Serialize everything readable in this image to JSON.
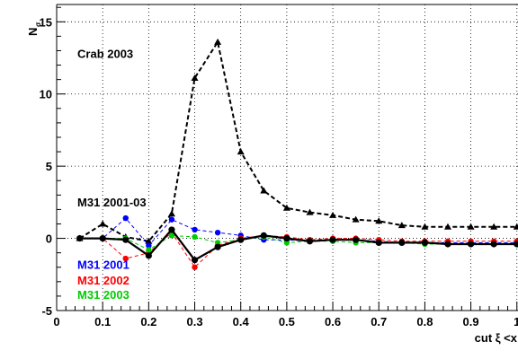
{
  "chart_data": {
    "type": "line",
    "title": "",
    "xlabel": "cut ξ <x",
    "ylabel": "N",
    "ylabel_subscript": "σ",
    "xlim": [
      0,
      1.02
    ],
    "ylim": [
      -5,
      16.2
    ],
    "x_ticks": [
      {
        "value": 0,
        "label": "0"
      },
      {
        "value": 0.1,
        "label": "0.1"
      },
      {
        "value": 0.2,
        "label": "0.2"
      },
      {
        "value": 0.3,
        "label": "0.3"
      },
      {
        "value": 0.4,
        "label": "0.4"
      },
      {
        "value": 0.5,
        "label": "0.5"
      },
      {
        "value": 0.6,
        "label": "0.6"
      },
      {
        "value": 0.7,
        "label": "0.7"
      },
      {
        "value": 0.8,
        "label": "0.8"
      },
      {
        "value": 0.9,
        "label": "0.9"
      },
      {
        "value": 1.0,
        "label": "1"
      }
    ],
    "y_ticks": [
      {
        "value": -5,
        "label": "-5"
      },
      {
        "value": 0,
        "label": "0"
      },
      {
        "value": 5,
        "label": "5"
      },
      {
        "value": 10,
        "label": "10"
      },
      {
        "value": 15,
        "label": "15"
      }
    ],
    "grid": true,
    "annotations": [
      {
        "text": "Crab 2003",
        "x": 0.045,
        "y": 12.5,
        "color": "#000000"
      },
      {
        "text": "M31 2001-03",
        "x": 0.045,
        "y": 2.2,
        "color": "#000000"
      },
      {
        "text": "M31 2001",
        "x": 0.045,
        "y": -2.1,
        "color": "#0000ff"
      },
      {
        "text": "M31 2002",
        "x": 0.045,
        "y": -3.2,
        "color": "#ff0000"
      },
      {
        "text": "M31 2003",
        "x": 0.045,
        "y": -4.2,
        "color": "#00cc00"
      }
    ],
    "series": [
      {
        "name": "Crab 2003",
        "color": "#000000",
        "marker": "triangle",
        "dash": true,
        "width": 2,
        "x": [
          0.05,
          0.1,
          0.15,
          0.2,
          0.25,
          0.3,
          0.35,
          0.4,
          0.45,
          0.5,
          0.55,
          0.6,
          0.65,
          0.7,
          0.75,
          0.8,
          0.85,
          0.9,
          0.95,
          1.0
        ],
        "y": [
          0.0,
          1.0,
          0.1,
          -0.2,
          1.7,
          11.1,
          13.6,
          6.0,
          3.3,
          2.1,
          1.8,
          1.6,
          1.3,
          1.2,
          0.9,
          0.8,
          0.8,
          0.8,
          0.8,
          0.8
        ]
      },
      {
        "name": "M31 2001",
        "color": "#0000ff",
        "marker": "circle",
        "dash": true,
        "width": 1,
        "x": [
          0.05,
          0.1,
          0.15,
          0.2,
          0.25,
          0.3,
          0.35,
          0.4,
          0.45,
          0.5,
          0.55,
          0.6,
          0.65,
          0.7,
          0.75,
          0.8,
          0.85,
          0.9,
          0.95,
          1.0
        ],
        "y": [
          0.0,
          0.0,
          1.4,
          -0.5,
          1.3,
          0.6,
          0.4,
          0.2,
          -0.1,
          -0.1,
          -0.2,
          -0.1,
          -0.1,
          -0.2,
          -0.3,
          -0.3,
          -0.3,
          -0.3,
          -0.3,
          -0.3
        ]
      },
      {
        "name": "M31 2002",
        "color": "#ff0000",
        "marker": "circle",
        "dash": true,
        "width": 1,
        "x": [
          0.05,
          0.1,
          0.15,
          0.2,
          0.25,
          0.3,
          0.35,
          0.4,
          0.45,
          0.5,
          0.55,
          0.6,
          0.65,
          0.7,
          0.75,
          0.8,
          0.85,
          0.9,
          0.95,
          1.0
        ],
        "y": [
          0.0,
          0.0,
          -1.4,
          -1.0,
          0.4,
          -2.0,
          -0.5,
          0.0,
          0.2,
          0.1,
          -0.1,
          0.0,
          0.0,
          -0.1,
          -0.2,
          -0.2,
          -0.2,
          -0.2,
          -0.2,
          -0.2
        ]
      },
      {
        "name": "M31 2003",
        "color": "#00cc00",
        "marker": "circle",
        "dash": true,
        "width": 1,
        "x": [
          0.05,
          0.1,
          0.15,
          0.2,
          0.25,
          0.3,
          0.35,
          0.4,
          0.45,
          0.5,
          0.55,
          0.6,
          0.65,
          0.7,
          0.75,
          0.8,
          0.85,
          0.9,
          0.95,
          1.0
        ],
        "y": [
          0.0,
          0.0,
          0.0,
          -0.8,
          0.2,
          0.1,
          -0.3,
          -0.1,
          0.1,
          -0.3,
          -0.2,
          -0.2,
          -0.3,
          -0.3,
          -0.3,
          -0.4,
          -0.4,
          -0.4,
          -0.4,
          -0.4
        ]
      },
      {
        "name": "M31 2001-03",
        "color": "#000000",
        "marker": "circle",
        "dash": false,
        "width": 2.2,
        "x": [
          0.05,
          0.1,
          0.15,
          0.2,
          0.25,
          0.3,
          0.35,
          0.4,
          0.45,
          0.5,
          0.55,
          0.6,
          0.65,
          0.7,
          0.75,
          0.8,
          0.85,
          0.9,
          0.95,
          1.0
        ],
        "y": [
          0.0,
          0.0,
          -0.1,
          -1.2,
          0.6,
          -1.5,
          -0.6,
          -0.1,
          0.2,
          0.0,
          -0.2,
          -0.1,
          -0.1,
          -0.3,
          -0.3,
          -0.3,
          -0.4,
          -0.4,
          -0.4,
          -0.4
        ]
      }
    ]
  }
}
